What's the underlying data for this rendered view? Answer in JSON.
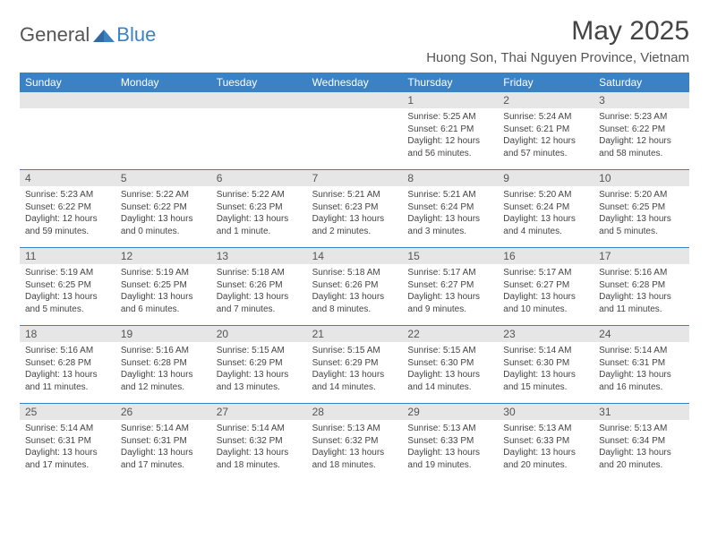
{
  "colors": {
    "header_bg": "#3b82c4",
    "header_text": "#ffffff",
    "daynum_bg": "#e6e6e6",
    "row_border": "#3b82c4",
    "body_text": "#444444",
    "page_bg": "#ffffff"
  },
  "typography": {
    "title_fontsize_pt": 22,
    "location_fontsize_pt": 11,
    "weekday_fontsize_pt": 9,
    "daynum_fontsize_pt": 9,
    "info_fontsize_pt": 7.5
  },
  "logo": {
    "general": "General",
    "blue": "Blue"
  },
  "title": "May 2025",
  "location": "Huong Son, Thai Nguyen Province, Vietnam",
  "weekdays": [
    "Sunday",
    "Monday",
    "Tuesday",
    "Wednesday",
    "Thursday",
    "Friday",
    "Saturday"
  ],
  "weeks": [
    [
      null,
      null,
      null,
      null,
      {
        "n": "1",
        "sr": "Sunrise: 5:25 AM",
        "ss": "Sunset: 6:21 PM",
        "dl": "Daylight: 12 hours and 56 minutes."
      },
      {
        "n": "2",
        "sr": "Sunrise: 5:24 AM",
        "ss": "Sunset: 6:21 PM",
        "dl": "Daylight: 12 hours and 57 minutes."
      },
      {
        "n": "3",
        "sr": "Sunrise: 5:23 AM",
        "ss": "Sunset: 6:22 PM",
        "dl": "Daylight: 12 hours and 58 minutes."
      }
    ],
    [
      {
        "n": "4",
        "sr": "Sunrise: 5:23 AM",
        "ss": "Sunset: 6:22 PM",
        "dl": "Daylight: 12 hours and 59 minutes."
      },
      {
        "n": "5",
        "sr": "Sunrise: 5:22 AM",
        "ss": "Sunset: 6:22 PM",
        "dl": "Daylight: 13 hours and 0 minutes."
      },
      {
        "n": "6",
        "sr": "Sunrise: 5:22 AM",
        "ss": "Sunset: 6:23 PM",
        "dl": "Daylight: 13 hours and 1 minute."
      },
      {
        "n": "7",
        "sr": "Sunrise: 5:21 AM",
        "ss": "Sunset: 6:23 PM",
        "dl": "Daylight: 13 hours and 2 minutes."
      },
      {
        "n": "8",
        "sr": "Sunrise: 5:21 AM",
        "ss": "Sunset: 6:24 PM",
        "dl": "Daylight: 13 hours and 3 minutes."
      },
      {
        "n": "9",
        "sr": "Sunrise: 5:20 AM",
        "ss": "Sunset: 6:24 PM",
        "dl": "Daylight: 13 hours and 4 minutes."
      },
      {
        "n": "10",
        "sr": "Sunrise: 5:20 AM",
        "ss": "Sunset: 6:25 PM",
        "dl": "Daylight: 13 hours and 5 minutes."
      }
    ],
    [
      {
        "n": "11",
        "sr": "Sunrise: 5:19 AM",
        "ss": "Sunset: 6:25 PM",
        "dl": "Daylight: 13 hours and 5 minutes."
      },
      {
        "n": "12",
        "sr": "Sunrise: 5:19 AM",
        "ss": "Sunset: 6:25 PM",
        "dl": "Daylight: 13 hours and 6 minutes."
      },
      {
        "n": "13",
        "sr": "Sunrise: 5:18 AM",
        "ss": "Sunset: 6:26 PM",
        "dl": "Daylight: 13 hours and 7 minutes."
      },
      {
        "n": "14",
        "sr": "Sunrise: 5:18 AM",
        "ss": "Sunset: 6:26 PM",
        "dl": "Daylight: 13 hours and 8 minutes."
      },
      {
        "n": "15",
        "sr": "Sunrise: 5:17 AM",
        "ss": "Sunset: 6:27 PM",
        "dl": "Daylight: 13 hours and 9 minutes."
      },
      {
        "n": "16",
        "sr": "Sunrise: 5:17 AM",
        "ss": "Sunset: 6:27 PM",
        "dl": "Daylight: 13 hours and 10 minutes."
      },
      {
        "n": "17",
        "sr": "Sunrise: 5:16 AM",
        "ss": "Sunset: 6:28 PM",
        "dl": "Daylight: 13 hours and 11 minutes."
      }
    ],
    [
      {
        "n": "18",
        "sr": "Sunrise: 5:16 AM",
        "ss": "Sunset: 6:28 PM",
        "dl": "Daylight: 13 hours and 11 minutes."
      },
      {
        "n": "19",
        "sr": "Sunrise: 5:16 AM",
        "ss": "Sunset: 6:28 PM",
        "dl": "Daylight: 13 hours and 12 minutes."
      },
      {
        "n": "20",
        "sr": "Sunrise: 5:15 AM",
        "ss": "Sunset: 6:29 PM",
        "dl": "Daylight: 13 hours and 13 minutes."
      },
      {
        "n": "21",
        "sr": "Sunrise: 5:15 AM",
        "ss": "Sunset: 6:29 PM",
        "dl": "Daylight: 13 hours and 14 minutes."
      },
      {
        "n": "22",
        "sr": "Sunrise: 5:15 AM",
        "ss": "Sunset: 6:30 PM",
        "dl": "Daylight: 13 hours and 14 minutes."
      },
      {
        "n": "23",
        "sr": "Sunrise: 5:14 AM",
        "ss": "Sunset: 6:30 PM",
        "dl": "Daylight: 13 hours and 15 minutes."
      },
      {
        "n": "24",
        "sr": "Sunrise: 5:14 AM",
        "ss": "Sunset: 6:31 PM",
        "dl": "Daylight: 13 hours and 16 minutes."
      }
    ],
    [
      {
        "n": "25",
        "sr": "Sunrise: 5:14 AM",
        "ss": "Sunset: 6:31 PM",
        "dl": "Daylight: 13 hours and 17 minutes."
      },
      {
        "n": "26",
        "sr": "Sunrise: 5:14 AM",
        "ss": "Sunset: 6:31 PM",
        "dl": "Daylight: 13 hours and 17 minutes."
      },
      {
        "n": "27",
        "sr": "Sunrise: 5:14 AM",
        "ss": "Sunset: 6:32 PM",
        "dl": "Daylight: 13 hours and 18 minutes."
      },
      {
        "n": "28",
        "sr": "Sunrise: 5:13 AM",
        "ss": "Sunset: 6:32 PM",
        "dl": "Daylight: 13 hours and 18 minutes."
      },
      {
        "n": "29",
        "sr": "Sunrise: 5:13 AM",
        "ss": "Sunset: 6:33 PM",
        "dl": "Daylight: 13 hours and 19 minutes."
      },
      {
        "n": "30",
        "sr": "Sunrise: 5:13 AM",
        "ss": "Sunset: 6:33 PM",
        "dl": "Daylight: 13 hours and 20 minutes."
      },
      {
        "n": "31",
        "sr": "Sunrise: 5:13 AM",
        "ss": "Sunset: 6:34 PM",
        "dl": "Daylight: 13 hours and 20 minutes."
      }
    ]
  ]
}
